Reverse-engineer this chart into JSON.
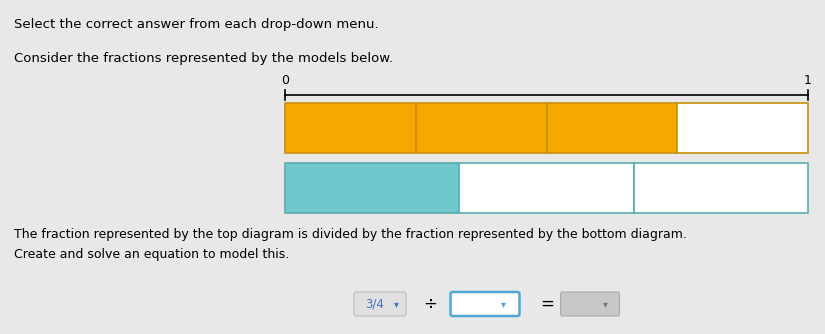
{
  "bg_color": "#e8e8e8",
  "title_line1": "Select the correct answer from each drop-down menu.",
  "title_line2": "Consider the fractions represented by the models below.",
  "number_line_label_0": "0",
  "number_line_label_1": "1",
  "top_bar": {
    "total_parts": 4,
    "filled_parts": 3,
    "fill_color": "#F5A800",
    "edge_color": "#c8900a",
    "empty_color": "#ffffff"
  },
  "bottom_bar": {
    "total_parts": 3,
    "filled_parts": 1,
    "fill_color": "#70C8CC",
    "edge_color": "#5aabaf",
    "empty_color": "#ffffff"
  },
  "description_line1": "The fraction represented by the top diagram is divided by the fraction represented by the bottom diagram.",
  "description_line2": "Create and solve an equation to model this.",
  "equation_label": "3/4",
  "eq_div": "÷",
  "eq_equals": "=",
  "frac_pill_color": "#e0e0e0",
  "frac_pill_border": "#bbbbbb",
  "frac_text_color": "#4472c4",
  "drop1_border": "#4da6d6",
  "drop1_bg": "#ffffff",
  "drop2_bg": "#c8c8c8",
  "drop2_border": "#aaaaaa",
  "chevron_color1": "#4472c4",
  "chevron_color2": "#777777"
}
